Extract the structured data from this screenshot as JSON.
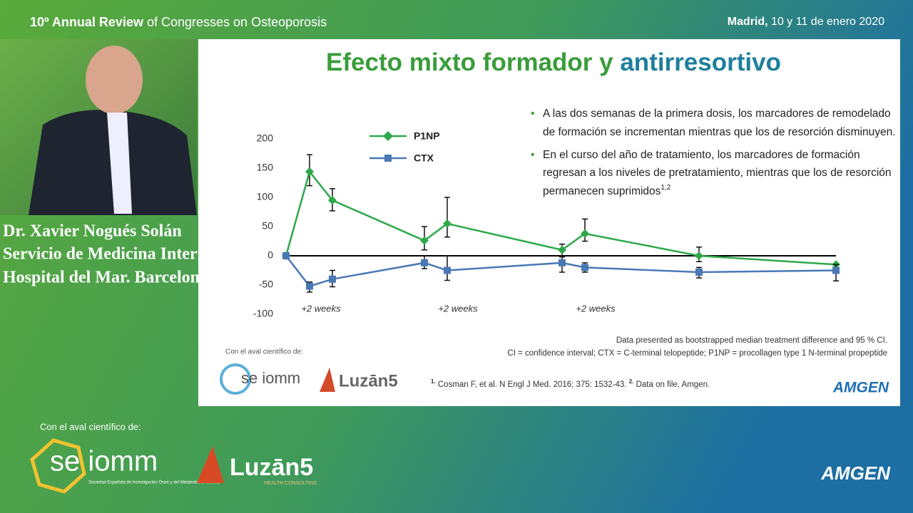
{
  "header": {
    "title_bold": "10º Annual Review",
    "title_rest": "of Congresses on Osteoporosis",
    "place": "Madrid,",
    "date": "10 y 11 de enero 2020"
  },
  "speaker": {
    "lines": [
      "Dr. Xavier Nogués Solán",
      "Servicio de Medicina Interna",
      "Hospital del Mar. Barcelona"
    ]
  },
  "slide": {
    "title_a": "Efecto mixto formador y",
    "title_b": "antirresortivo",
    "bullets": [
      {
        "lines": [
          "A las dos semanas de la primera dosis, los marcadores de remodelado",
          "de formación se incrementan mientras que los de resorción disminuyen."
        ]
      },
      {
        "lines": [
          "En el curso del año de tratamiento, los marcadores de formación",
          "regresan a los niveles de pretratamiento, mientras que los de resorción",
          "permanecen suprimidos"
        ],
        "sup": "1,2"
      }
    ],
    "notes": [
      "Data presented as bootstrapped median treatment difference and 95 % CI.",
      "CI = confidence interval; CTX = C-terminal telopeptide; P1NP = procollagen type 1 N-terminal propeptide"
    ],
    "references": [
      {
        "mark": "1.",
        "text": "Cosman F, et al. N Engl J Med. 2016; 375: 1532-43."
      },
      {
        "mark": "2.",
        "text": "Data on file, Amgen."
      }
    ],
    "aval": "Con el aval científico de:",
    "logo_seiomm": "se iomm",
    "logo_luzan": "Luzān5",
    "logo_amgen": "AMGEN"
  },
  "footer": {
    "aval": "Con el aval científico de:",
    "logo_seiomm": "se iomm",
    "seiomm_sub": "Sociedad Española de Investigación Ósea y del Metabolismo Mineral",
    "logo_luzan": "Luzān5",
    "luzan_sub": "HEALTH CONSULTING",
    "logo_amgen": "AMGEN"
  },
  "chart_data": {
    "type": "line",
    "x_labels": [
      "+2 weeks",
      "+2 weeks",
      "+2 weeks"
    ],
    "ylim": [
      -100,
      200
    ],
    "yticks": [
      -100,
      -50,
      0,
      50,
      100,
      150,
      200
    ],
    "series": [
      {
        "name": "P1NP",
        "color": "#2ea84a",
        "marker": "diamond",
        "values": [
          0,
          144,
          95,
          26,
          55,
          10,
          38,
          0,
          -15
        ],
        "ci_low": [
          null,
          120,
          77,
          10,
          32,
          0,
          25,
          -10,
          null
        ],
        "ci_high": [
          null,
          173,
          115,
          50,
          100,
          20,
          63,
          15,
          null
        ]
      },
      {
        "name": "CTX",
        "color": "#4a78b5",
        "marker": "square",
        "values": [
          0,
          -52,
          -40,
          -12,
          -25,
          -12,
          -20,
          -28,
          -25
        ],
        "ci_low": [
          null,
          -62,
          -53,
          -22,
          -42,
          -28,
          -28,
          -38,
          -43
        ],
        "ci_high": [
          null,
          -45,
          -25,
          0,
          0,
          -2,
          -12,
          -20,
          -15
        ]
      }
    ]
  }
}
